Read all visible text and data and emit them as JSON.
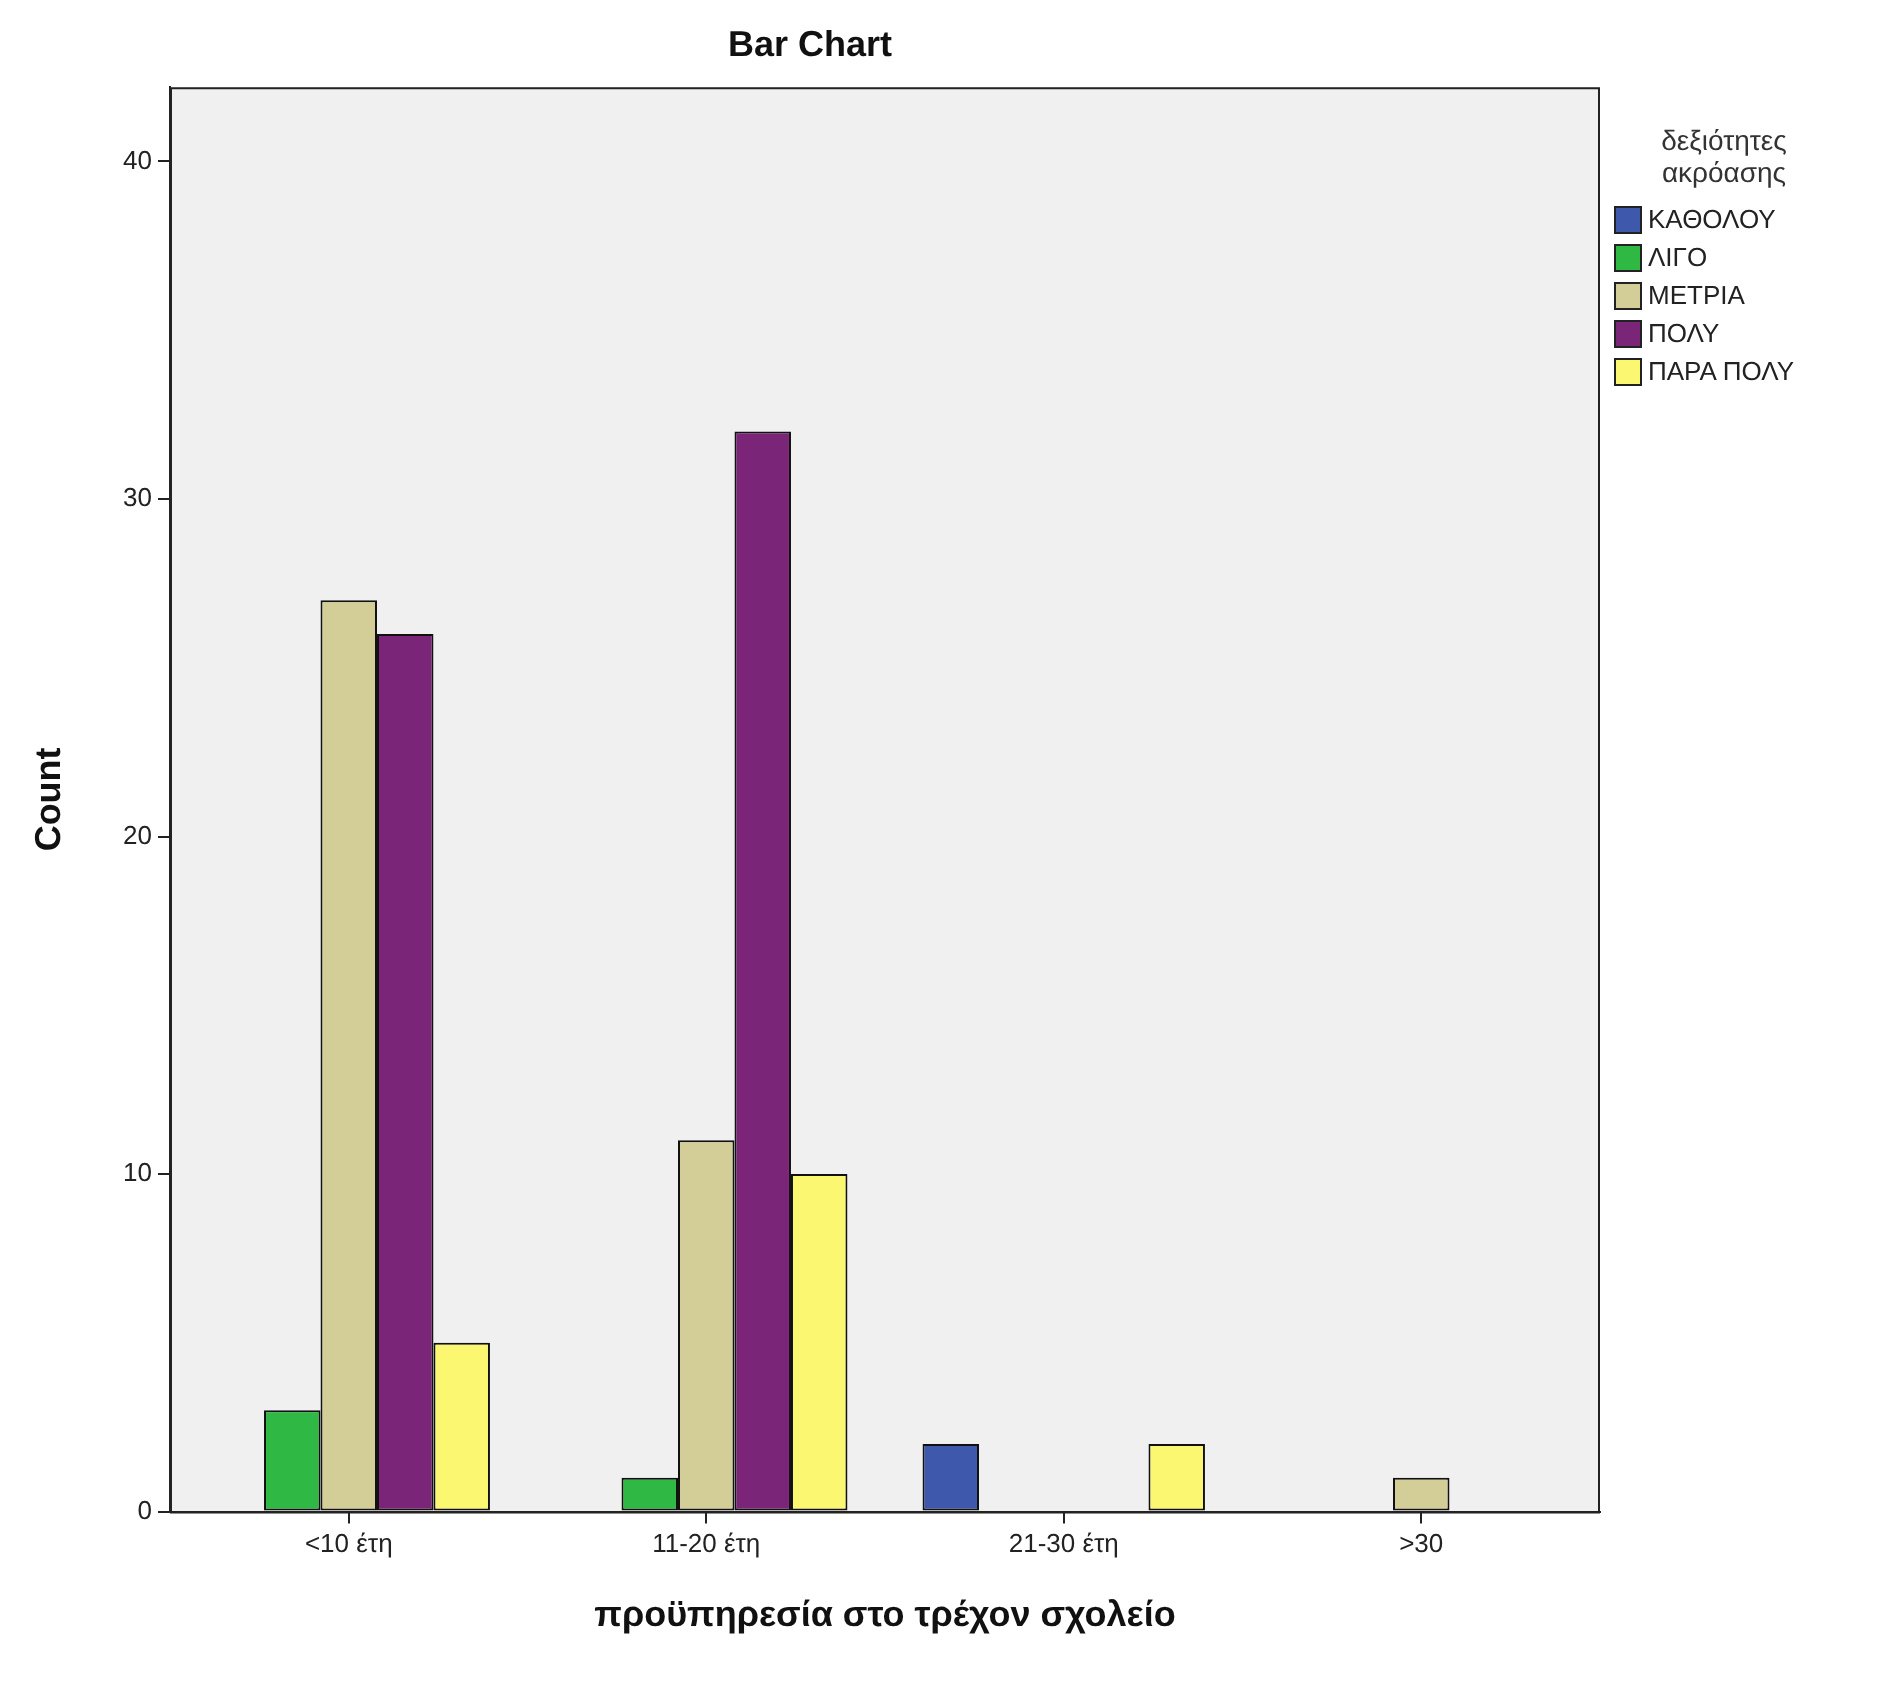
{
  "chart_data": {
    "type": "bar",
    "title": "Bar Chart",
    "xlabel": "προϋπηρεσία στο τρέχον σχολείο",
    "ylabel": "Count",
    "legend_title": "δεξιότητες ακρόασης",
    "categories": [
      "<10 έτη",
      "11-20 έτη",
      "21-30 έτη",
      ">30"
    ],
    "series": [
      {
        "name": "ΚΑΘΟΛΟΥ",
        "color": "#3e58ac",
        "values": [
          null,
          null,
          2,
          null
        ]
      },
      {
        "name": "ΛΙΓΟ",
        "color": "#2fb844",
        "values": [
          3,
          1,
          null,
          null
        ]
      },
      {
        "name": "ΜΕΤΡΙΑ",
        "color": "#d3ce97",
        "values": [
          27,
          11,
          null,
          1
        ]
      },
      {
        "name": "ΠΟΛΥ",
        "color": "#7b2579",
        "values": [
          26,
          32,
          null,
          null
        ]
      },
      {
        "name": "ΠΑΡΑ ΠΟΛΥ",
        "color": "#fbf771",
        "values": [
          5,
          10,
          2,
          null
        ]
      }
    ],
    "ylim": [
      0,
      42.2
    ],
    "yticks": [
      0,
      10,
      20,
      30,
      40
    ],
    "grid": false,
    "legend": "right"
  }
}
